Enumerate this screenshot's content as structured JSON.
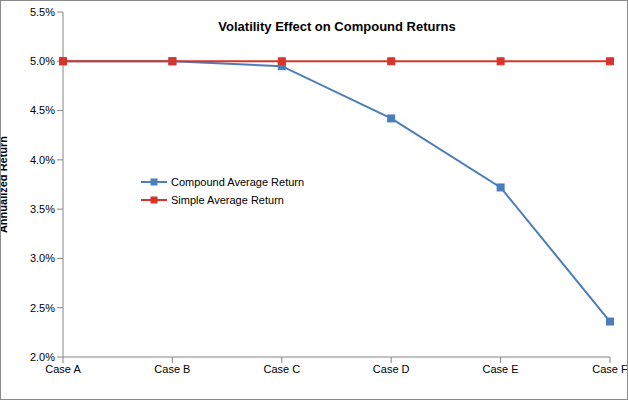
{
  "chart_data": {
    "type": "line",
    "title": "Volatility Effect on Compound Returns",
    "y_label": "Annualized Return",
    "categories": [
      "Case A",
      "Case B",
      "Case C",
      "Case D",
      "Case E",
      "Case F"
    ],
    "series": [
      {
        "name": "Compound Average Return",
        "color": "#4a7ebb",
        "marker": "square",
        "values": [
          5.0,
          5.0,
          4.95,
          4.42,
          3.72,
          2.36
        ]
      },
      {
        "name": "Simple Average Return",
        "color": "#d9342b",
        "marker": "square",
        "values": [
          5.0,
          5.0,
          5.0,
          5.0,
          5.0,
          5.0
        ]
      }
    ],
    "ylim": [
      2.0,
      5.5
    ],
    "yticks": [
      {
        "value": 2.0,
        "label": "2.0%"
      },
      {
        "value": 2.5,
        "label": "2.5%"
      },
      {
        "value": 3.0,
        "label": "3.0%"
      },
      {
        "value": 3.5,
        "label": "3.5%"
      },
      {
        "value": 4.0,
        "label": "4.0%"
      },
      {
        "value": 4.5,
        "label": "4.5%"
      },
      {
        "value": 5.0,
        "label": "5.0%"
      },
      {
        "value": 5.5,
        "label": "5.5%"
      }
    ],
    "grid": false,
    "legend": "left"
  }
}
